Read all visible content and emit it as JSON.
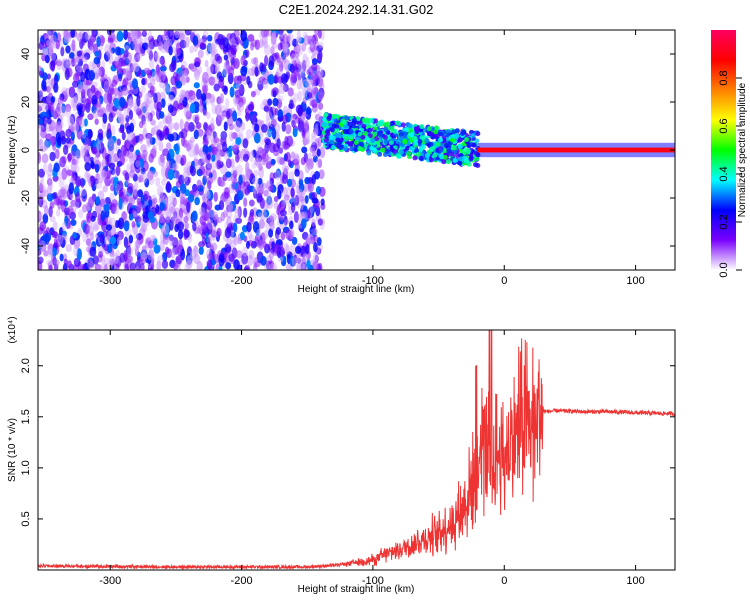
{
  "title": "C2E1.2024.292.14.31.G02",
  "chart_data": [
    {
      "type": "heatmap",
      "title": "C2E1.2024.292.14.31.G02",
      "xlabel": "Height of straight line (km)",
      "ylabel": "Frequency (Hz)",
      "xlim": [
        -355,
        130
      ],
      "ylim": [
        -50,
        50
      ],
      "xticks": [
        -300,
        -200,
        -100,
        0,
        100
      ],
      "yticks": [
        -40,
        -20,
        0,
        20,
        40
      ],
      "grid": false,
      "colorbar": {
        "label": "Normalized spectral amplitude",
        "range": [
          0,
          1
        ],
        "ticks": [
          "0.0",
          "0.2",
          "0.4",
          "0.6",
          "0.8"
        ],
        "colormap": "rainbow",
        "colors": [
          "#ffffff",
          "#7a00ff",
          "#0000ff",
          "#00ffff",
          "#00ff00",
          "#ffff00",
          "#ff8000",
          "#ff0000",
          "#ff0060"
        ]
      },
      "regions": [
        {
          "x_range": [
            -355,
            -138
          ],
          "y_range": [
            -50,
            50
          ],
          "description": "scattered noise, amplitude 0.05-0.3"
        },
        {
          "x_range": [
            -138,
            -20
          ],
          "center_y": [
            8,
            -5
          ],
          "description": "signal band, amplitude 0.2-0.5"
        },
        {
          "x_range": [
            -20,
            130
          ],
          "center_y": 0,
          "description": "narrow carrier line, amplitude ~0.9"
        }
      ]
    },
    {
      "type": "line",
      "xlabel": "Height of straight line (km)",
      "ylabel": "SNR (10 * v/v)",
      "y_multiplier": "(x10⁴)",
      "xlim": [
        -355,
        130
      ],
      "ylim": [
        0,
        2.35
      ],
      "xticks": [
        -300,
        -200,
        -100,
        0,
        100
      ],
      "yticks": [
        "0.5",
        "1.0",
        "1.5",
        "2.0"
      ],
      "grid": false,
      "color": "#ee3333",
      "x": [
        -355,
        -250,
        -150,
        -125,
        -100,
        -80,
        -60,
        -40,
        -30,
        -20,
        -15,
        -10,
        -5,
        0,
        5,
        10,
        20,
        30,
        40,
        60,
        80,
        100,
        130
      ],
      "y": [
        0.04,
        0.03,
        0.03,
        0.05,
        0.1,
        0.2,
        0.3,
        0.45,
        0.65,
        1.0,
        1.3,
        0.9,
        1.15,
        1.1,
        1.2,
        1.4,
        1.45,
        1.55,
        1.56,
        1.55,
        1.55,
        1.54,
        1.53
      ]
    }
  ]
}
